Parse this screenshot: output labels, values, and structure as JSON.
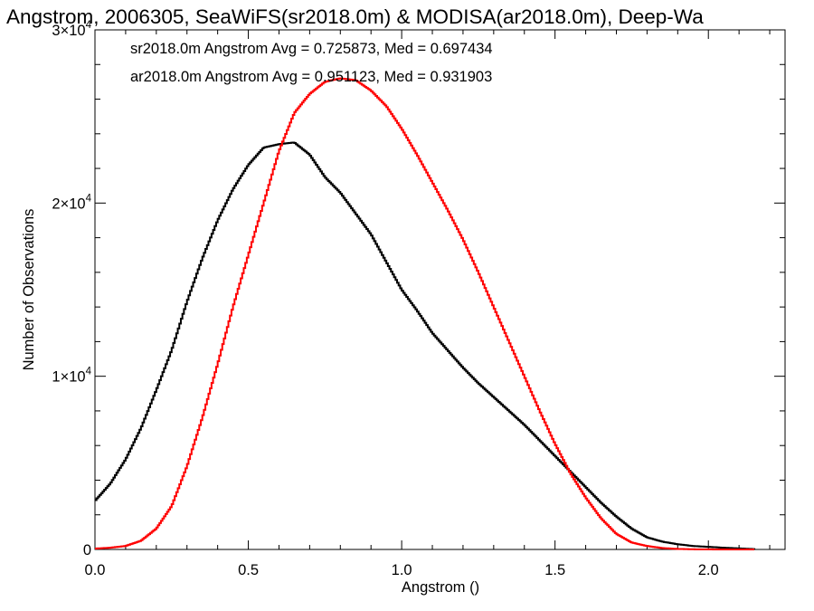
{
  "chart_data": {
    "type": "line",
    "title": "Angstrom, 2006305, SeaWiFS(sr2018.0m) & MODISA(ar2018.0m), Deep-Wa",
    "xlabel": "Angstrom ()",
    "ylabel": "Number of Observations",
    "xlim": [
      0.0,
      2.25
    ],
    "ylim": [
      0,
      30000
    ],
    "x_ticks": [
      {
        "value": 0.0,
        "label": "0.0"
      },
      {
        "value": 0.5,
        "label": "0.5"
      },
      {
        "value": 1.0,
        "label": "1.0"
      },
      {
        "value": 1.5,
        "label": "1.5"
      },
      {
        "value": 2.0,
        "label": "2.0"
      }
    ],
    "y_ticks": [
      {
        "value": 0,
        "mantissa": "0",
        "exponent": ""
      },
      {
        "value": 10000,
        "mantissa": "1×10",
        "exponent": "4"
      },
      {
        "value": 20000,
        "mantissa": "2×10",
        "exponent": "4"
      },
      {
        "value": 30000,
        "mantissa": "3×10",
        "exponent": "4"
      }
    ],
    "grid": false,
    "series": [
      {
        "name": "sr2018.0m",
        "color": "#000000",
        "annotation": "sr2018.0m Angstrom Avg = 0.725873, Med = 0.697434",
        "x": [
          0.0,
          0.05,
          0.1,
          0.15,
          0.2,
          0.25,
          0.3,
          0.35,
          0.4,
          0.45,
          0.5,
          0.55,
          0.6,
          0.65,
          0.7,
          0.75,
          0.8,
          0.85,
          0.9,
          0.95,
          1.0,
          1.05,
          1.1,
          1.15,
          1.2,
          1.25,
          1.3,
          1.35,
          1.4,
          1.45,
          1.5,
          1.55,
          1.6,
          1.65,
          1.7,
          1.75,
          1.8,
          1.85,
          1.9,
          1.95,
          2.0,
          2.05,
          2.1,
          2.15
        ],
        "y": [
          2800,
          3800,
          5200,
          7000,
          9200,
          11500,
          14300,
          16800,
          19000,
          20800,
          22200,
          23200,
          23400,
          23500,
          22800,
          21500,
          20600,
          19400,
          18200,
          16600,
          15000,
          13800,
          12500,
          11500,
          10500,
          9600,
          8800,
          8000,
          7200,
          6300,
          5400,
          4500,
          3600,
          2700,
          1900,
          1200,
          700,
          450,
          300,
          200,
          150,
          100,
          60,
          20
        ]
      },
      {
        "name": "ar2018.0m",
        "color": "#ff0000",
        "annotation": "ar2018.0m Angstrom Avg = 0.951123, Med = 0.931903",
        "x": [
          0.0,
          0.05,
          0.1,
          0.15,
          0.2,
          0.25,
          0.3,
          0.35,
          0.4,
          0.45,
          0.5,
          0.55,
          0.6,
          0.65,
          0.7,
          0.75,
          0.8,
          0.85,
          0.9,
          0.95,
          1.0,
          1.05,
          1.1,
          1.15,
          1.2,
          1.25,
          1.3,
          1.35,
          1.4,
          1.45,
          1.5,
          1.55,
          1.6,
          1.65,
          1.7,
          1.75,
          1.8,
          1.85,
          1.9,
          1.95,
          2.0,
          2.05,
          2.1,
          2.15
        ],
        "y": [
          50,
          100,
          200,
          500,
          1200,
          2500,
          4800,
          7600,
          10700,
          14000,
          17000,
          20000,
          23000,
          25200,
          26300,
          27000,
          27200,
          27100,
          26500,
          25600,
          24300,
          22800,
          21200,
          19600,
          17900,
          16000,
          14000,
          12000,
          10000,
          8000,
          6100,
          4400,
          3000,
          1800,
          900,
          400,
          200,
          80,
          30,
          10,
          5,
          0,
          0,
          0
        ]
      }
    ]
  }
}
